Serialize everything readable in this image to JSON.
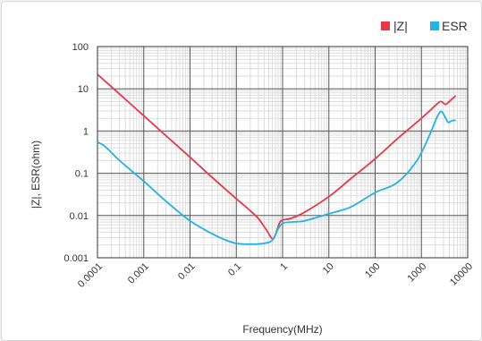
{
  "chart_data": {
    "type": "line",
    "title": "",
    "xlabel": "Frequency(MHz)",
    "ylabel": "|Z|, ESR(ohm)",
    "x_scale": "log",
    "y_scale": "log",
    "xlim": [
      0.0001,
      10000
    ],
    "ylim": [
      0.001,
      100
    ],
    "x_ticks": [
      "0.0001",
      "0.001",
      "0.01",
      "0.1",
      "1",
      "10",
      "100",
      "1000",
      "10000"
    ],
    "y_ticks": [
      "100",
      "10",
      "1",
      "0.1",
      "0.01",
      "0.001"
    ],
    "grid": true,
    "legend_position": "top-right",
    "series": [
      {
        "name": "|Z|",
        "color": "#e63946",
        "points": [
          [
            0.0001,
            22
          ],
          [
            0.0003,
            7.5
          ],
          [
            0.001,
            2.3
          ],
          [
            0.003,
            0.78
          ],
          [
            0.01,
            0.24
          ],
          [
            0.03,
            0.08
          ],
          [
            0.1,
            0.025
          ],
          [
            0.2,
            0.013
          ],
          [
            0.3,
            0.0085
          ],
          [
            0.45,
            0.0045
          ],
          [
            0.6,
            0.0028
          ],
          [
            0.7,
            0.0035
          ],
          [
            0.85,
            0.0065
          ],
          [
            1.0,
            0.0078
          ],
          [
            1.5,
            0.0085
          ],
          [
            3,
            0.012
          ],
          [
            10,
            0.028
          ],
          [
            30,
            0.075
          ],
          [
            100,
            0.22
          ],
          [
            300,
            0.65
          ],
          [
            1000,
            2.0
          ],
          [
            2000,
            4.0
          ],
          [
            2600,
            5.0
          ],
          [
            3300,
            4.3
          ],
          [
            4000,
            5.0
          ],
          [
            5500,
            6.8
          ]
        ]
      },
      {
        "name": "ESR",
        "color": "#1fb3e6",
        "points": [
          [
            0.0001,
            0.55
          ],
          [
            0.00015,
            0.42
          ],
          [
            0.0003,
            0.2
          ],
          [
            0.001,
            0.065
          ],
          [
            0.003,
            0.022
          ],
          [
            0.01,
            0.0075
          ],
          [
            0.03,
            0.0037
          ],
          [
            0.06,
            0.0026
          ],
          [
            0.1,
            0.0022
          ],
          [
            0.2,
            0.0021
          ],
          [
            0.4,
            0.0022
          ],
          [
            0.6,
            0.0026
          ],
          [
            0.8,
            0.0048
          ],
          [
            1.0,
            0.0065
          ],
          [
            1.5,
            0.007
          ],
          [
            3,
            0.0075
          ],
          [
            10,
            0.011
          ],
          [
            30,
            0.016
          ],
          [
            100,
            0.035
          ],
          [
            300,
            0.06
          ],
          [
            800,
            0.2
          ],
          [
            1500,
            0.8
          ],
          [
            2200,
            2.2
          ],
          [
            2700,
            2.9
          ],
          [
            3200,
            2.2
          ],
          [
            3800,
            1.6
          ],
          [
            4500,
            1.75
          ],
          [
            5500,
            1.8
          ]
        ]
      }
    ]
  }
}
